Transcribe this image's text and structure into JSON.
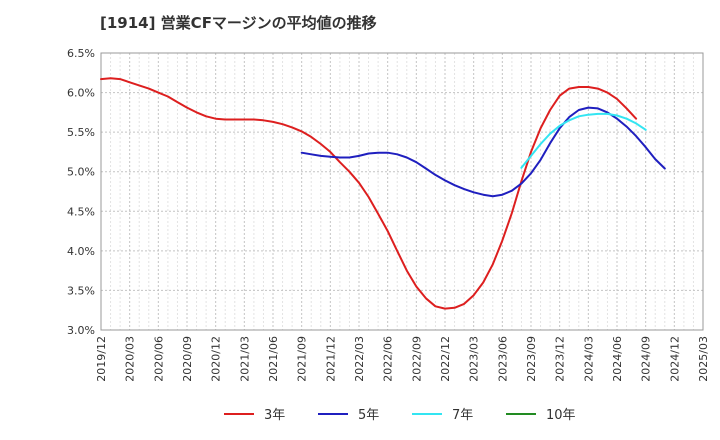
{
  "chart_data": {
    "type": "line",
    "title": "[1914]  営業CFマージンの平均値の推移",
    "xlabel": "",
    "ylabel": "",
    "ylim": [
      3.0,
      6.5
    ],
    "yticks": [
      "3.0%",
      "3.5%",
      "4.0%",
      "4.5%",
      "5.0%",
      "5.5%",
      "6.0%",
      "6.5%"
    ],
    "xticks": [
      "2019/12",
      "2020/03",
      "2020/06",
      "2020/09",
      "2020/12",
      "2021/03",
      "2021/06",
      "2021/09",
      "2021/12",
      "2022/03",
      "2022/06",
      "2022/09",
      "2022/12",
      "2023/03",
      "2023/06",
      "2023/09",
      "2023/12",
      "2024/03",
      "2024/06",
      "2024/09",
      "2024/12",
      "2025/03"
    ],
    "grid": true,
    "legend_position": "bottom",
    "series": [
      {
        "name": "3年",
        "color": "#dd1f1f",
        "start": "2019/12",
        "values": [
          6.17,
          6.18,
          6.17,
          6.13,
          6.09,
          6.05,
          6.0,
          5.95,
          5.88,
          5.81,
          5.75,
          5.7,
          5.67,
          5.66,
          5.66,
          5.66,
          5.66,
          5.65,
          5.63,
          5.6,
          5.56,
          5.51,
          5.44,
          5.35,
          5.25,
          5.12,
          5.0,
          4.86,
          4.68,
          4.47,
          4.25,
          4.0,
          3.75,
          3.55,
          3.4,
          3.3,
          3.27,
          3.28,
          3.33,
          3.44,
          3.6,
          3.83,
          4.13,
          4.48,
          4.88,
          5.25,
          5.55,
          5.78,
          5.96,
          6.05,
          6.07,
          6.07,
          6.05,
          6.0,
          5.92,
          5.8,
          5.67
        ]
      },
      {
        "name": "5年",
        "color": "#1f1fbf",
        "start": "2021/09",
        "values": [
          5.24,
          5.22,
          5.2,
          5.19,
          5.18,
          5.18,
          5.2,
          5.23,
          5.24,
          5.24,
          5.22,
          5.18,
          5.12,
          5.04,
          4.96,
          4.89,
          4.83,
          4.78,
          4.74,
          4.71,
          4.69,
          4.71,
          4.76,
          4.85,
          4.98,
          5.15,
          5.36,
          5.55,
          5.69,
          5.78,
          5.81,
          5.8,
          5.75,
          5.67,
          5.57,
          5.45,
          5.31,
          5.16,
          5.04
        ]
      },
      {
        "name": "7年",
        "color": "#33e5f2",
        "start": "2023/08",
        "values": [
          5.05,
          5.2,
          5.35,
          5.48,
          5.58,
          5.65,
          5.7,
          5.72,
          5.73,
          5.73,
          5.71,
          5.67,
          5.61,
          5.53
        ]
      },
      {
        "name": "10年",
        "color": "#228b22",
        "start": "2024/09",
        "values": []
      }
    ]
  }
}
